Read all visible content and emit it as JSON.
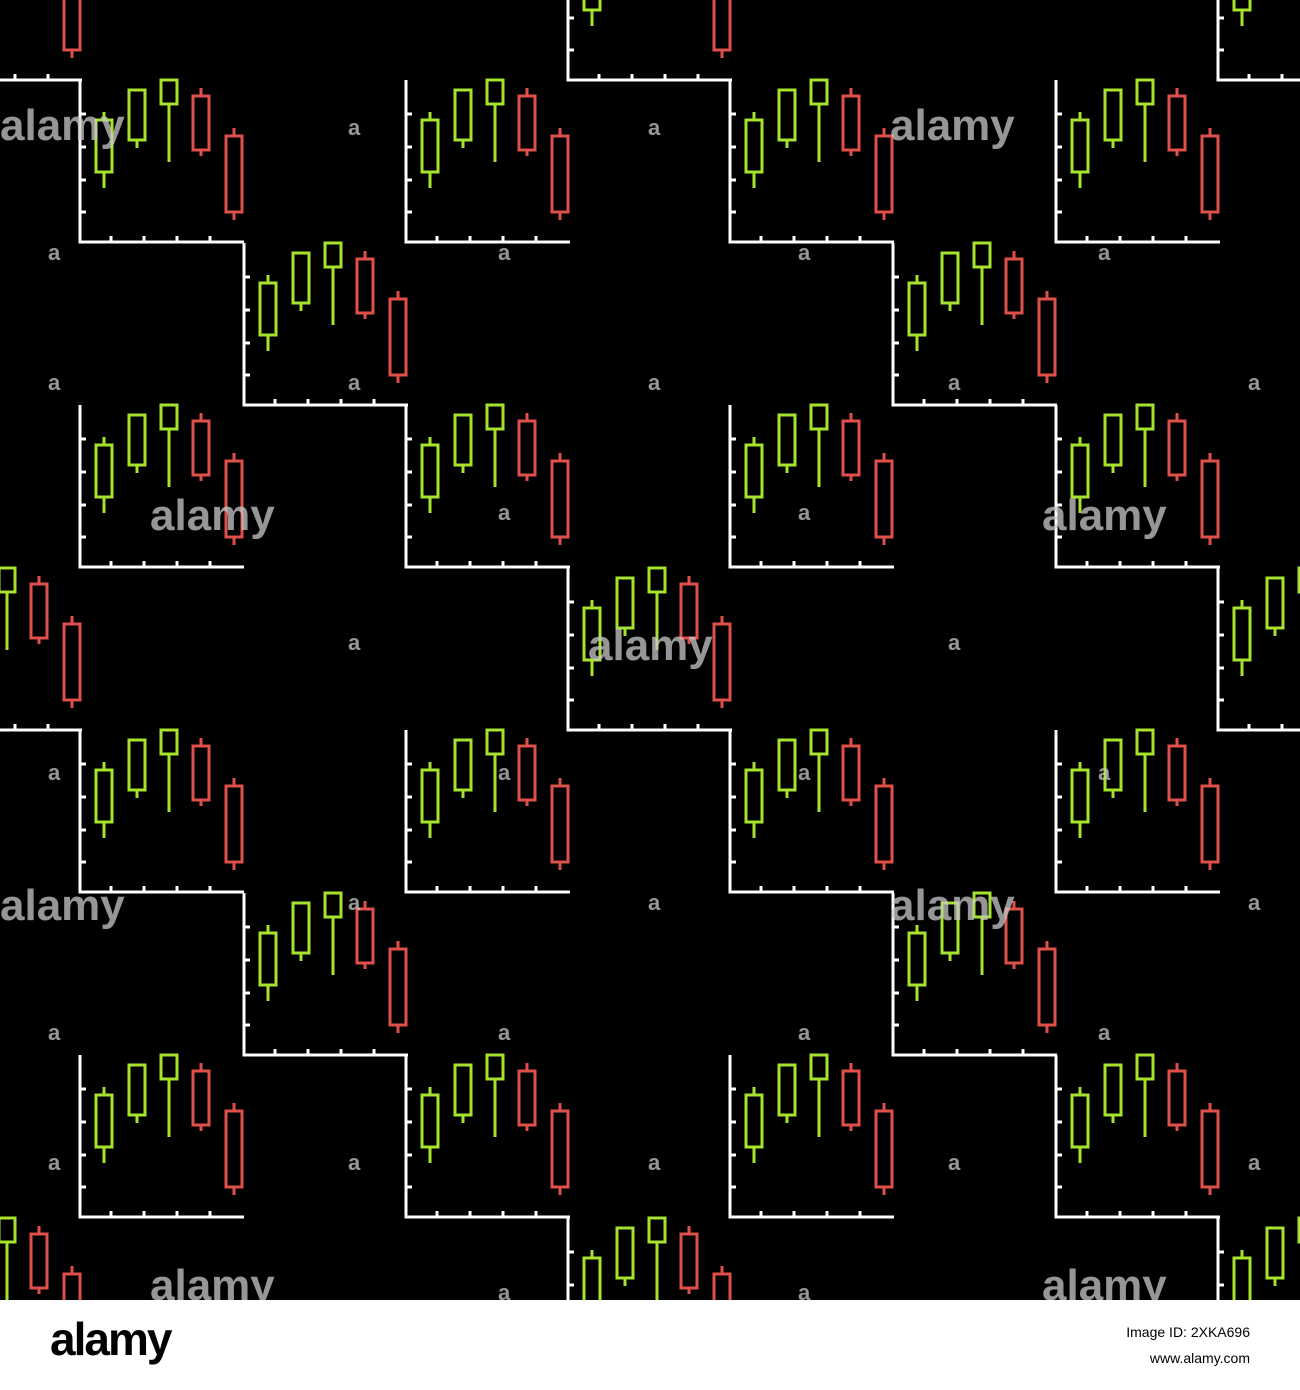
{
  "watermark": {
    "word": "alamy",
    "mark": "a"
  },
  "footer": {
    "logo": "alamy",
    "image_id": "Image ID: 2XKA696",
    "url": "www.alamy.com"
  }
}
